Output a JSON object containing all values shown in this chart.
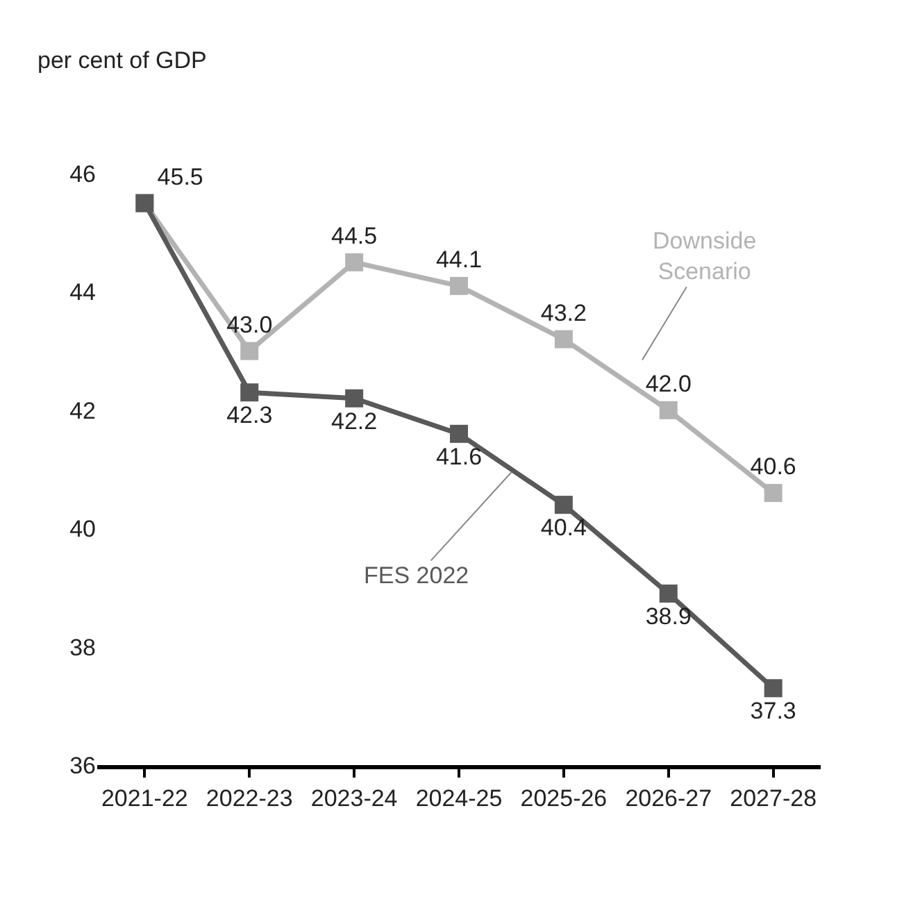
{
  "chart_data": {
    "type": "line",
    "ylabel": "per cent of GDP",
    "categories": [
      "2021-22",
      "2022-23",
      "2023-24",
      "2024-25",
      "2025-26",
      "2026-27",
      "2027-28"
    ],
    "series": [
      {
        "name": "FES 2022",
        "color": "#595959",
        "values": [
          45.5,
          42.3,
          42.2,
          41.6,
          40.4,
          38.9,
          37.3
        ],
        "value_labels": [
          "45.5",
          "42.3",
          "42.2",
          "41.6",
          "40.4",
          "38.9",
          "37.3"
        ]
      },
      {
        "name": "Downside Scenario",
        "color": "#b3b3b3",
        "values": [
          45.5,
          43.0,
          44.5,
          44.1,
          43.2,
          42.0,
          40.6
        ],
        "value_labels": [
          null,
          "43.0",
          "44.5",
          "44.1",
          "43.2",
          "42.0",
          "40.6"
        ]
      }
    ],
    "ylim": [
      36,
      46
    ],
    "yticks": [
      36,
      38,
      40,
      42,
      44,
      46
    ],
    "legend": false,
    "marker": "square",
    "line_style": "solid"
  }
}
